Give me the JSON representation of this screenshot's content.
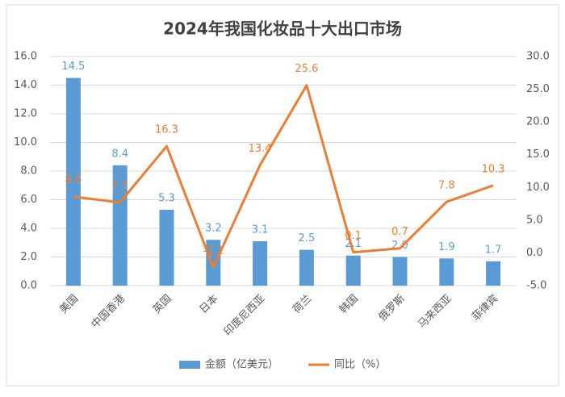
{
  "chart_data": {
    "type": "bar-line",
    "title": "2024年我国化妆品十大出口市场",
    "categories": [
      "美国",
      "中国香港",
      "英国",
      "日本",
      "印度尼西亚",
      "荷兰",
      "韩国",
      "俄罗斯",
      "马来西亚",
      "菲律宾"
    ],
    "series": [
      {
        "name": "金额（亿美元）",
        "type": "bar",
        "color": "#5b9bd5",
        "axis": "y",
        "values": [
          14.5,
          8.4,
          5.3,
          3.2,
          3.1,
          2.5,
          2.1,
          2.0,
          1.9,
          1.7
        ],
        "value_labels": [
          "14.5",
          "8.4",
          "5.3",
          "3.2",
          "3.1",
          "2.5",
          "2.1",
          "2.0",
          "1.9",
          "1.7"
        ]
      },
      {
        "name": "同比（%）",
        "type": "line",
        "color": "#ed7d31",
        "axis": "y2",
        "values": [
          8.6,
          7.7,
          16.3,
          -2.2,
          13.4,
          25.6,
          0.1,
          0.7,
          7.8,
          10.3
        ],
        "value_labels": [
          "8.6",
          "7.7",
          "16.3",
          "-2.2",
          "13.4",
          "25.6",
          "0.1",
          "0.7",
          "7.8",
          "10.3"
        ]
      }
    ],
    "ylim": [
      0,
      16
    ],
    "yticks": [
      {
        "value": 0,
        "label": "0.0"
      },
      {
        "value": 2,
        "label": "2.0"
      },
      {
        "value": 4,
        "label": "4.0"
      },
      {
        "value": 6,
        "label": "6.0"
      },
      {
        "value": 8,
        "label": "8.0"
      },
      {
        "value": 10,
        "label": "10.0"
      },
      {
        "value": 12,
        "label": "12.0"
      },
      {
        "value": 14,
        "label": "14.0"
      },
      {
        "value": 16,
        "label": "16.0"
      }
    ],
    "y2lim": [
      -5,
      30
    ],
    "y2ticks": [
      {
        "value": -5,
        "label": "-5.0"
      },
      {
        "value": 0,
        "label": "0.0"
      },
      {
        "value": 5,
        "label": "5.0"
      },
      {
        "value": 10,
        "label": "10.0"
      },
      {
        "value": 15,
        "label": "15.0"
      },
      {
        "value": 20,
        "label": "20.0"
      },
      {
        "value": 25,
        "label": "25.0"
      },
      {
        "value": 30,
        "label": "30.0"
      }
    ],
    "grid": true,
    "legend": "bottom"
  }
}
